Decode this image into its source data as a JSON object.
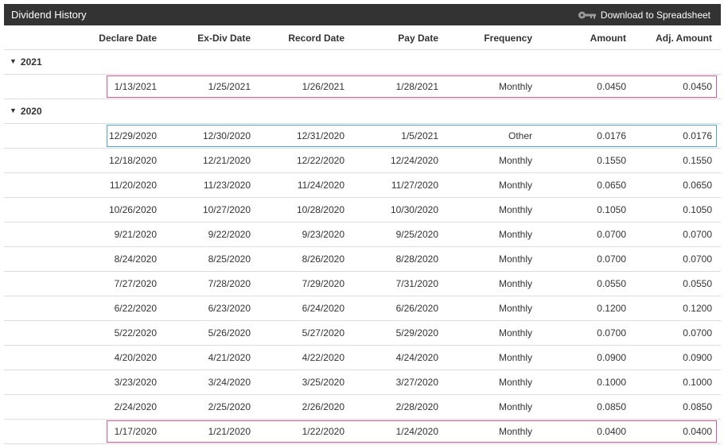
{
  "header": {
    "title": "Dividend History",
    "download_label": "Download to Spreadsheet"
  },
  "columns": {
    "declare": "Declare Date",
    "exdiv": "Ex-Div Date",
    "record": "Record Date",
    "pay": "Pay Date",
    "frequency": "Frequency",
    "amount": "Amount",
    "adj": "Adj. Amount"
  },
  "colors": {
    "header_bg": "#333333",
    "highlight_pink": "#e0559a",
    "highlight_blue": "#4aa8dc",
    "divider": "#dddddd"
  },
  "groups": [
    {
      "year": "2021",
      "rows": [
        {
          "declare": "1/13/2021",
          "exdiv": "1/25/2021",
          "record": "1/26/2021",
          "pay": "1/28/2021",
          "frequency": "Monthly",
          "amount": "0.0450",
          "adj": "0.0450",
          "highlight": "pink"
        }
      ]
    },
    {
      "year": "2020",
      "rows": [
        {
          "declare": "12/29/2020",
          "exdiv": "12/30/2020",
          "record": "12/31/2020",
          "pay": "1/5/2021",
          "frequency": "Other",
          "amount": "0.0176",
          "adj": "0.0176",
          "highlight": "blue"
        },
        {
          "declare": "12/18/2020",
          "exdiv": "12/21/2020",
          "record": "12/22/2020",
          "pay": "12/24/2020",
          "frequency": "Monthly",
          "amount": "0.1550",
          "adj": "0.1550"
        },
        {
          "declare": "11/20/2020",
          "exdiv": "11/23/2020",
          "record": "11/24/2020",
          "pay": "11/27/2020",
          "frequency": "Monthly",
          "amount": "0.0650",
          "adj": "0.0650"
        },
        {
          "declare": "10/26/2020",
          "exdiv": "10/27/2020",
          "record": "10/28/2020",
          "pay": "10/30/2020",
          "frequency": "Monthly",
          "amount": "0.1050",
          "adj": "0.1050"
        },
        {
          "declare": "9/21/2020",
          "exdiv": "9/22/2020",
          "record": "9/23/2020",
          "pay": "9/25/2020",
          "frequency": "Monthly",
          "amount": "0.0700",
          "adj": "0.0700"
        },
        {
          "declare": "8/24/2020",
          "exdiv": "8/25/2020",
          "record": "8/26/2020",
          "pay": "8/28/2020",
          "frequency": "Monthly",
          "amount": "0.0700",
          "adj": "0.0700"
        },
        {
          "declare": "7/27/2020",
          "exdiv": "7/28/2020",
          "record": "7/29/2020",
          "pay": "7/31/2020",
          "frequency": "Monthly",
          "amount": "0.0550",
          "adj": "0.0550"
        },
        {
          "declare": "6/22/2020",
          "exdiv": "6/23/2020",
          "record": "6/24/2020",
          "pay": "6/26/2020",
          "frequency": "Monthly",
          "amount": "0.1200",
          "adj": "0.1200"
        },
        {
          "declare": "5/22/2020",
          "exdiv": "5/26/2020",
          "record": "5/27/2020",
          "pay": "5/29/2020",
          "frequency": "Monthly",
          "amount": "0.0700",
          "adj": "0.0700"
        },
        {
          "declare": "4/20/2020",
          "exdiv": "4/21/2020",
          "record": "4/22/2020",
          "pay": "4/24/2020",
          "frequency": "Monthly",
          "amount": "0.0900",
          "adj": "0.0900"
        },
        {
          "declare": "3/23/2020",
          "exdiv": "3/24/2020",
          "record": "3/25/2020",
          "pay": "3/27/2020",
          "frequency": "Monthly",
          "amount": "0.1000",
          "adj": "0.1000"
        },
        {
          "declare": "2/24/2020",
          "exdiv": "2/25/2020",
          "record": "2/26/2020",
          "pay": "2/28/2020",
          "frequency": "Monthly",
          "amount": "0.0850",
          "adj": "0.0850"
        },
        {
          "declare": "1/17/2020",
          "exdiv": "1/21/2020",
          "record": "1/22/2020",
          "pay": "1/24/2020",
          "frequency": "Monthly",
          "amount": "0.0400",
          "adj": "0.0400",
          "highlight": "pink"
        }
      ]
    }
  ]
}
